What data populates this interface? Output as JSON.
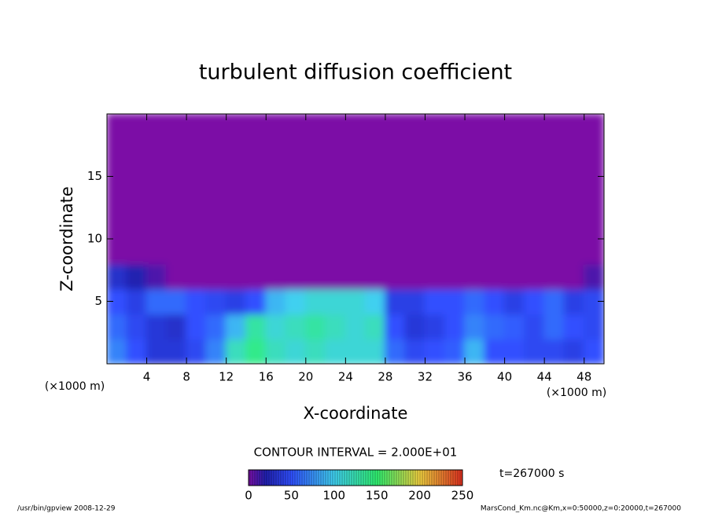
{
  "chart_data": {
    "type": "heatmap",
    "title": "turbulent diffusion coefficient",
    "xlabel": "X-coordinate",
    "ylabel": "Z-coordinate",
    "x_unit": "(×1000 m)",
    "xlim": [
      0,
      50
    ],
    "ylim": [
      0,
      20
    ],
    "xticks": [
      4,
      8,
      12,
      16,
      20,
      24,
      28,
      32,
      36,
      40,
      44,
      48
    ],
    "yticks": [
      5,
      10,
      15
    ],
    "x": [
      1,
      3,
      5,
      7,
      9,
      11,
      13,
      15,
      17,
      19,
      21,
      23,
      25,
      27,
      29,
      31,
      33,
      35,
      37,
      39,
      41,
      43,
      45,
      47,
      49
    ],
    "y": [
      1,
      3,
      5,
      7,
      9,
      11,
      13,
      15,
      17,
      19
    ],
    "z": [
      [
        70,
        50,
        35,
        35,
        45,
        70,
        120,
        140,
        120,
        110,
        120,
        110,
        110,
        110,
        60,
        45,
        50,
        55,
        90,
        50,
        50,
        45,
        45,
        40,
        50
      ],
      [
        60,
        45,
        35,
        30,
        50,
        60,
        90,
        130,
        110,
        120,
        130,
        120,
        110,
        120,
        50,
        35,
        40,
        50,
        70,
        60,
        55,
        45,
        60,
        50,
        45
      ],
      [
        50,
        40,
        60,
        60,
        50,
        45,
        40,
        50,
        90,
        100,
        110,
        110,
        110,
        100,
        40,
        40,
        50,
        50,
        60,
        50,
        40,
        50,
        60,
        40,
        45
      ],
      [
        30,
        20,
        10,
        0,
        0,
        0,
        0,
        0,
        0,
        0,
        0,
        0,
        0,
        0,
        0,
        0,
        0,
        0,
        0,
        0,
        0,
        0,
        0,
        0,
        10
      ],
      [
        0,
        0,
        0,
        0,
        0,
        0,
        0,
        0,
        0,
        0,
        0,
        0,
        0,
        0,
        0,
        0,
        0,
        0,
        0,
        0,
        0,
        0,
        0,
        0,
        0
      ],
      [
        0,
        0,
        0,
        0,
        0,
        0,
        0,
        0,
        0,
        0,
        0,
        0,
        0,
        0,
        0,
        0,
        0,
        0,
        0,
        0,
        0,
        0,
        0,
        0,
        0
      ],
      [
        0,
        0,
        0,
        0,
        0,
        0,
        0,
        0,
        0,
        0,
        0,
        0,
        0,
        0,
        0,
        0,
        0,
        0,
        0,
        0,
        0,
        0,
        0,
        0,
        0
      ],
      [
        0,
        0,
        0,
        0,
        0,
        0,
        0,
        0,
        0,
        0,
        0,
        0,
        0,
        0,
        0,
        0,
        0,
        0,
        0,
        0,
        0,
        0,
        0,
        0,
        0
      ],
      [
        0,
        0,
        0,
        0,
        0,
        0,
        0,
        0,
        0,
        0,
        0,
        0,
        0,
        0,
        0,
        0,
        0,
        0,
        0,
        0,
        0,
        0,
        0,
        0,
        0
      ],
      [
        0,
        0,
        0,
        0,
        0,
        0,
        0,
        0,
        0,
        0,
        0,
        0,
        0,
        0,
        0,
        0,
        0,
        0,
        0,
        0,
        0,
        0,
        0,
        0,
        0
      ]
    ],
    "colorscale": [
      {
        "value": 0,
        "color": "#7b10a6"
      },
      {
        "value": 20,
        "color": "#2020b0"
      },
      {
        "value": 50,
        "color": "#3050ff"
      },
      {
        "value": 100,
        "color": "#40d0f0"
      },
      {
        "value": 150,
        "color": "#30f070"
      },
      {
        "value": 200,
        "color": "#f0d040"
      },
      {
        "value": 250,
        "color": "#e03020"
      }
    ],
    "colorbar_lim": [
      0,
      250
    ],
    "colorbar_ticks": [
      0,
      50,
      100,
      150,
      200,
      250
    ],
    "contour_note": "CONTOUR INTERVAL = 2.000E+01",
    "time_label": "t=267000 s",
    "footer_left": "/usr/bin/gpview   2008-12-29",
    "footer_right": "MarsCond_Km.nc@Km,x=0:50000,z=0:20000,t=267000"
  }
}
